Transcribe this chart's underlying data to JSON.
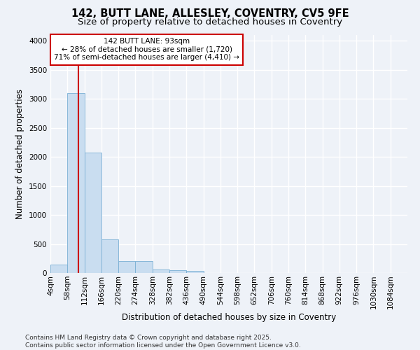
{
  "title_line1": "142, BUTT LANE, ALLESLEY, COVENTRY, CV5 9FE",
  "title_line2": "Size of property relative to detached houses in Coventry",
  "xlabel": "Distribution of detached houses by size in Coventry",
  "ylabel": "Number of detached properties",
  "bar_color": "#c9ddf0",
  "bar_edge_color": "#7aafd4",
  "background_color": "#eef2f8",
  "plot_bg_color": "#eef2f8",
  "grid_color": "#ffffff",
  "bin_edges": [
    4,
    58,
    112,
    166,
    220,
    274,
    328,
    382,
    436,
    490,
    544,
    598,
    652,
    706,
    760,
    814,
    868,
    922,
    976,
    1030,
    1084
  ],
  "bin_labels": [
    "4sqm",
    "58sqm",
    "112sqm",
    "166sqm",
    "220sqm",
    "274sqm",
    "328sqm",
    "382sqm",
    "436sqm",
    "490sqm",
    "544sqm",
    "598sqm",
    "652sqm",
    "706sqm",
    "760sqm",
    "814sqm",
    "868sqm",
    "922sqm",
    "976sqm",
    "1030sqm",
    "1084sqm"
  ],
  "bar_heights": [
    140,
    3100,
    2080,
    580,
    205,
    205,
    65,
    50,
    35,
    0,
    0,
    0,
    0,
    0,
    0,
    0,
    0,
    0,
    0,
    0
  ],
  "property_size": 93,
  "vline_color": "#cc0000",
  "annotation_text": "142 BUTT LANE: 93sqm\n← 28% of detached houses are smaller (1,720)\n71% of semi-detached houses are larger (4,410) →",
  "annotation_box_color": "#ffffff",
  "annotation_box_edge": "#cc0000",
  "ylim": [
    0,
    4100
  ],
  "yticks": [
    0,
    500,
    1000,
    1500,
    2000,
    2500,
    3000,
    3500,
    4000
  ],
  "footnote": "Contains HM Land Registry data © Crown copyright and database right 2025.\nContains public sector information licensed under the Open Government Licence v3.0.",
  "title_fontsize": 10.5,
  "subtitle_fontsize": 9.5,
  "label_fontsize": 8.5,
  "tick_fontsize": 7.5,
  "annotation_fontsize": 7.5,
  "footnote_fontsize": 6.5
}
